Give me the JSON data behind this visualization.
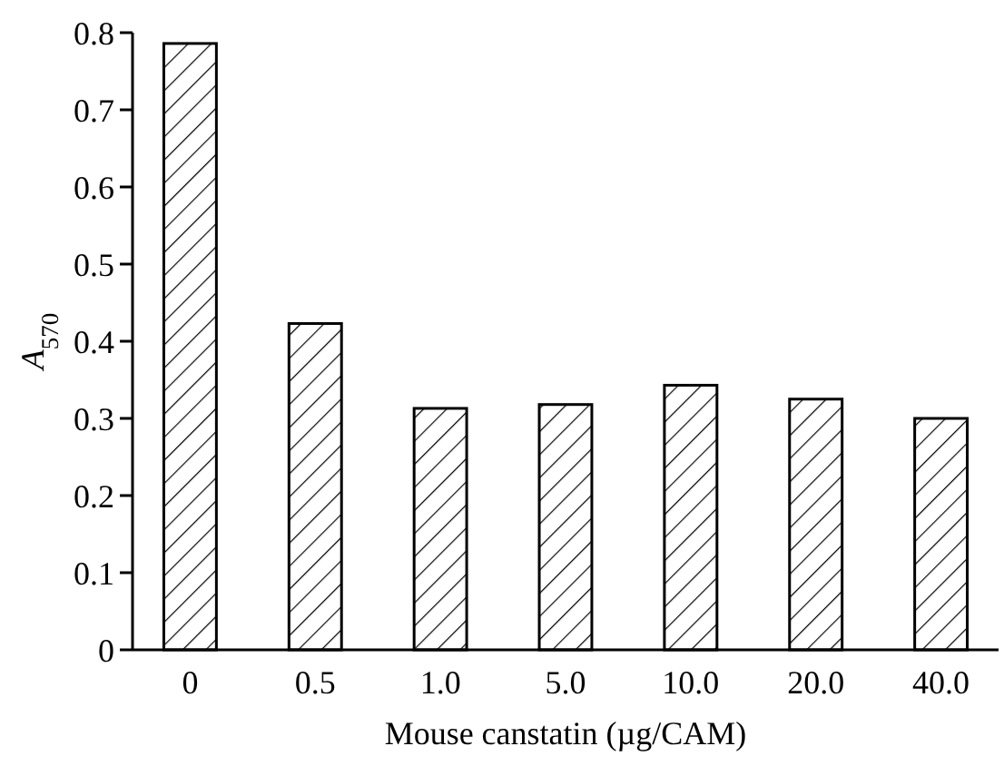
{
  "chart_data": {
    "type": "bar",
    "xlabel": "Mouse canstatin (µg/CAM)",
    "ylabel": "A$_{570}$",
    "categories": [
      "0",
      "0.5",
      "1.0",
      "5.0",
      "10.0",
      "20.0",
      "40.0"
    ],
    "values": [
      0.786,
      0.423,
      0.313,
      0.318,
      0.343,
      0.325,
      0.3
    ],
    "color": "#000000",
    "ylim": [
      0,
      0.8
    ],
    "yticks": [
      0,
      0.1,
      0.2,
      0.3,
      0.4,
      0.5,
      0.6,
      0.7,
      0.8
    ],
    "grid": false
  }
}
